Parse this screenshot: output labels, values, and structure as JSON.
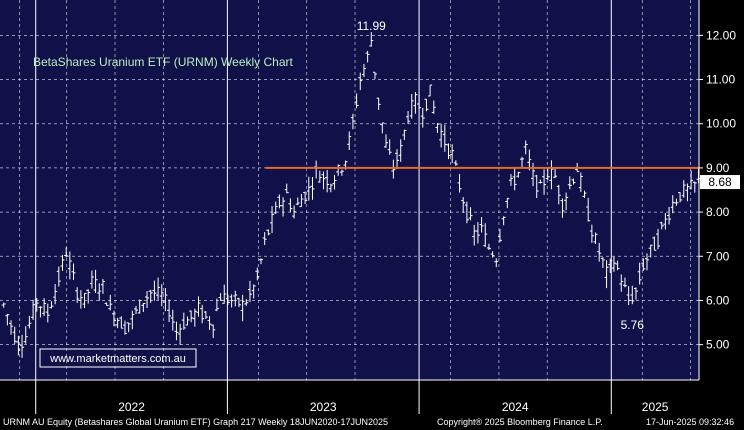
{
  "chart_data": {
    "type": "ohlc",
    "title": "BetaShares Uranium ETF (URNM) Weekly Chart",
    "watermark": "www.marketmatters.com.au",
    "ylim": [
      4.2,
      12.8
    ],
    "y_ticks": [
      "12.00",
      "11.00",
      "10.00",
      "9.00",
      "8.00",
      "7.00",
      "6.00",
      "5.00"
    ],
    "x_labels": [
      "2022",
      "2023",
      "2024",
      "2025"
    ],
    "x_dividers": [
      "2022-01",
      "2023-01",
      "2024-01",
      "2025-01"
    ],
    "x_start": "2021-10-25",
    "x_end": "2025-06-17",
    "last_price": "8.68",
    "last_price_value": 8.68,
    "resistance": {
      "value": 9.0,
      "from": "2023-03-15",
      "to": "2025-06-17",
      "color": "#e8682a"
    },
    "annotations": [
      {
        "text": "11.99",
        "date": "2023-10-02",
        "value": 11.99
      },
      {
        "text": "5.76",
        "date": "2025-02-10",
        "value": 5.76
      }
    ],
    "series": [
      {
        "values": [
          [
            "2021-11-01",
            5.9
          ],
          [
            "2021-11-29",
            5.0
          ],
          [
            "2021-12-13",
            5.2
          ],
          [
            "2022-01-03",
            6.0
          ],
          [
            "2022-01-24",
            5.7
          ],
          [
            "2022-02-14",
            6.5
          ],
          [
            "2022-02-28",
            7.1
          ],
          [
            "2022-03-07",
            6.8
          ],
          [
            "2022-03-21",
            6.2
          ],
          [
            "2022-04-04",
            6.0
          ],
          [
            "2022-04-18",
            6.4
          ],
          [
            "2022-05-09",
            6.3
          ],
          [
            "2022-05-23",
            5.8
          ],
          [
            "2022-06-06",
            5.6
          ],
          [
            "2022-06-20",
            5.4
          ],
          [
            "2022-07-04",
            5.6
          ],
          [
            "2022-07-25",
            6.0
          ],
          [
            "2022-08-08",
            6.2
          ],
          [
            "2022-08-29",
            6.1
          ],
          [
            "2022-09-12",
            5.8
          ],
          [
            "2022-09-26",
            5.3
          ],
          [
            "2022-10-10",
            5.5
          ],
          [
            "2022-10-24",
            5.6
          ],
          [
            "2022-11-07",
            5.8
          ],
          [
            "2022-11-21",
            5.6
          ],
          [
            "2022-12-05",
            5.5
          ],
          [
            "2022-12-19",
            6.1
          ],
          [
            "2023-01-09",
            6.0
          ],
          [
            "2023-01-30",
            5.9
          ],
          [
            "2023-02-13",
            6.1
          ],
          [
            "2023-02-27",
            6.5
          ],
          [
            "2023-03-13",
            7.3
          ],
          [
            "2023-03-27",
            7.8
          ],
          [
            "2023-04-10",
            8.2
          ],
          [
            "2023-04-24",
            8.4
          ],
          [
            "2023-05-08",
            8.0
          ],
          [
            "2023-05-22",
            8.3
          ],
          [
            "2023-06-05",
            8.5
          ],
          [
            "2023-06-19",
            8.9
          ],
          [
            "2023-07-03",
            8.8
          ],
          [
            "2023-07-17",
            8.7
          ],
          [
            "2023-07-31",
            8.9
          ],
          [
            "2023-08-14",
            9.2
          ],
          [
            "2023-08-28",
            10.0
          ],
          [
            "2023-09-11",
            11.0
          ],
          [
            "2023-09-25",
            11.5
          ],
          [
            "2023-10-02",
            11.9
          ],
          [
            "2023-10-16",
            10.5
          ],
          [
            "2023-10-30",
            9.5
          ],
          [
            "2023-11-13",
            9.0
          ],
          [
            "2023-11-27",
            9.4
          ],
          [
            "2023-12-11",
            10.2
          ],
          [
            "2023-12-25",
            10.5
          ],
          [
            "2024-01-08",
            10.3
          ],
          [
            "2024-01-22",
            10.7
          ],
          [
            "2024-02-05",
            10.0
          ],
          [
            "2024-02-19",
            9.6
          ],
          [
            "2024-03-04",
            9.3
          ],
          [
            "2024-03-18",
            8.6
          ],
          [
            "2024-04-01",
            8.0
          ],
          [
            "2024-04-15",
            7.5
          ],
          [
            "2024-04-29",
            7.6
          ],
          [
            "2024-05-13",
            7.2
          ],
          [
            "2024-05-27",
            7.0
          ],
          [
            "2024-06-10",
            8.0
          ],
          [
            "2024-06-24",
            8.6
          ],
          [
            "2024-07-08",
            8.9
          ],
          [
            "2024-07-22",
            9.4
          ],
          [
            "2024-08-05",
            8.8
          ],
          [
            "2024-08-19",
            8.5
          ],
          [
            "2024-09-02",
            8.9
          ],
          [
            "2024-09-16",
            8.8
          ],
          [
            "2024-09-30",
            8.2
          ],
          [
            "2024-10-14",
            8.6
          ],
          [
            "2024-10-28",
            9.0
          ],
          [
            "2024-11-11",
            8.3
          ],
          [
            "2024-11-25",
            7.6
          ],
          [
            "2024-12-09",
            7.1
          ],
          [
            "2024-12-23",
            6.6
          ],
          [
            "2025-01-06",
            6.9
          ],
          [
            "2025-01-20",
            6.5
          ],
          [
            "2025-02-03",
            6.0
          ],
          [
            "2025-02-17",
            6.2
          ],
          [
            "2025-03-03",
            6.8
          ],
          [
            "2025-03-17",
            7.1
          ],
          [
            "2025-03-31",
            7.4
          ],
          [
            "2025-04-14",
            7.8
          ],
          [
            "2025-04-28",
            8.2
          ],
          [
            "2025-05-12",
            8.4
          ],
          [
            "2025-05-26",
            8.5
          ],
          [
            "2025-06-09",
            8.6
          ],
          [
            "2025-06-16",
            8.68
          ]
        ]
      }
    ]
  },
  "footer": {
    "left": "URNM AU Equity (Betashares Global Uranium ETF) Graph 217  Weekly 18JUN2020-17JUN2025",
    "right": "Copyright® 2025 Bloomberg Finance L.P.",
    "timestamp": "17-Jun-2025 09:32:46"
  },
  "colors": {
    "plot_bg": "#11114a",
    "grid": "#ffffff",
    "price_bar": "#ffffff",
    "title_text": "#b9f0c0",
    "watermark_border": "#ffffff",
    "axis_text": "#ffffff",
    "last_price_tag_bg": "#ffffff",
    "last_price_tag_text": "#000000"
  }
}
